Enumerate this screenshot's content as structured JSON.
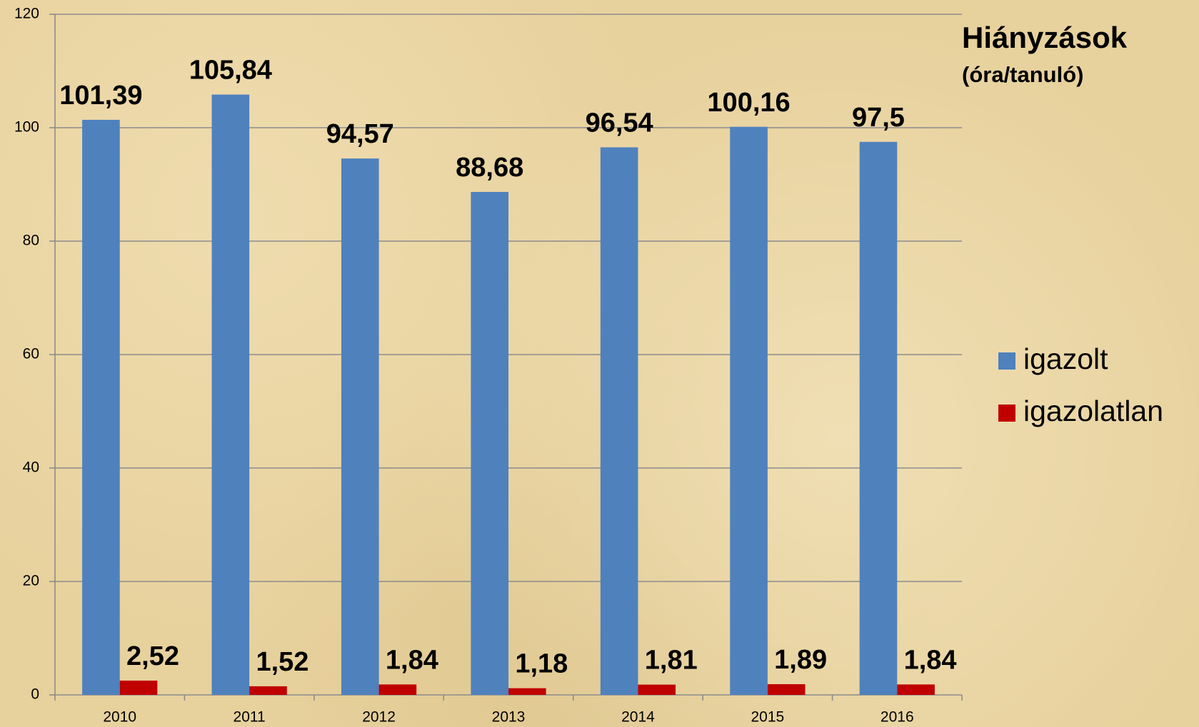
{
  "chart_data": {
    "type": "bar",
    "title": "Hiányzások",
    "subtitle": "(óra/tanuló)",
    "categories": [
      "2010",
      "2011",
      "2012",
      "2013",
      "2014",
      "2015",
      "2016"
    ],
    "series": [
      {
        "name": "igazolt",
        "color": "#4f81bd",
        "values": [
          101.39,
          105.84,
          94.57,
          88.68,
          96.54,
          100.16,
          97.5
        ],
        "value_labels": [
          "101,39",
          "105,84",
          "94,57",
          "88,68",
          "96,54",
          "100,16",
          "97,5"
        ]
      },
      {
        "name": "igazolatlan",
        "color": "#c00000",
        "values": [
          2.52,
          1.52,
          1.84,
          1.18,
          1.81,
          1.89,
          1.84
        ],
        "value_labels": [
          "2,52",
          "1,52",
          "1,84",
          "1,18",
          "1,81",
          "1,89",
          "1,84"
        ]
      }
    ],
    "ylim": [
      0,
      120
    ],
    "yticks": [
      0,
      20,
      40,
      60,
      80,
      100,
      120
    ],
    "grid": true,
    "legend": "right"
  }
}
